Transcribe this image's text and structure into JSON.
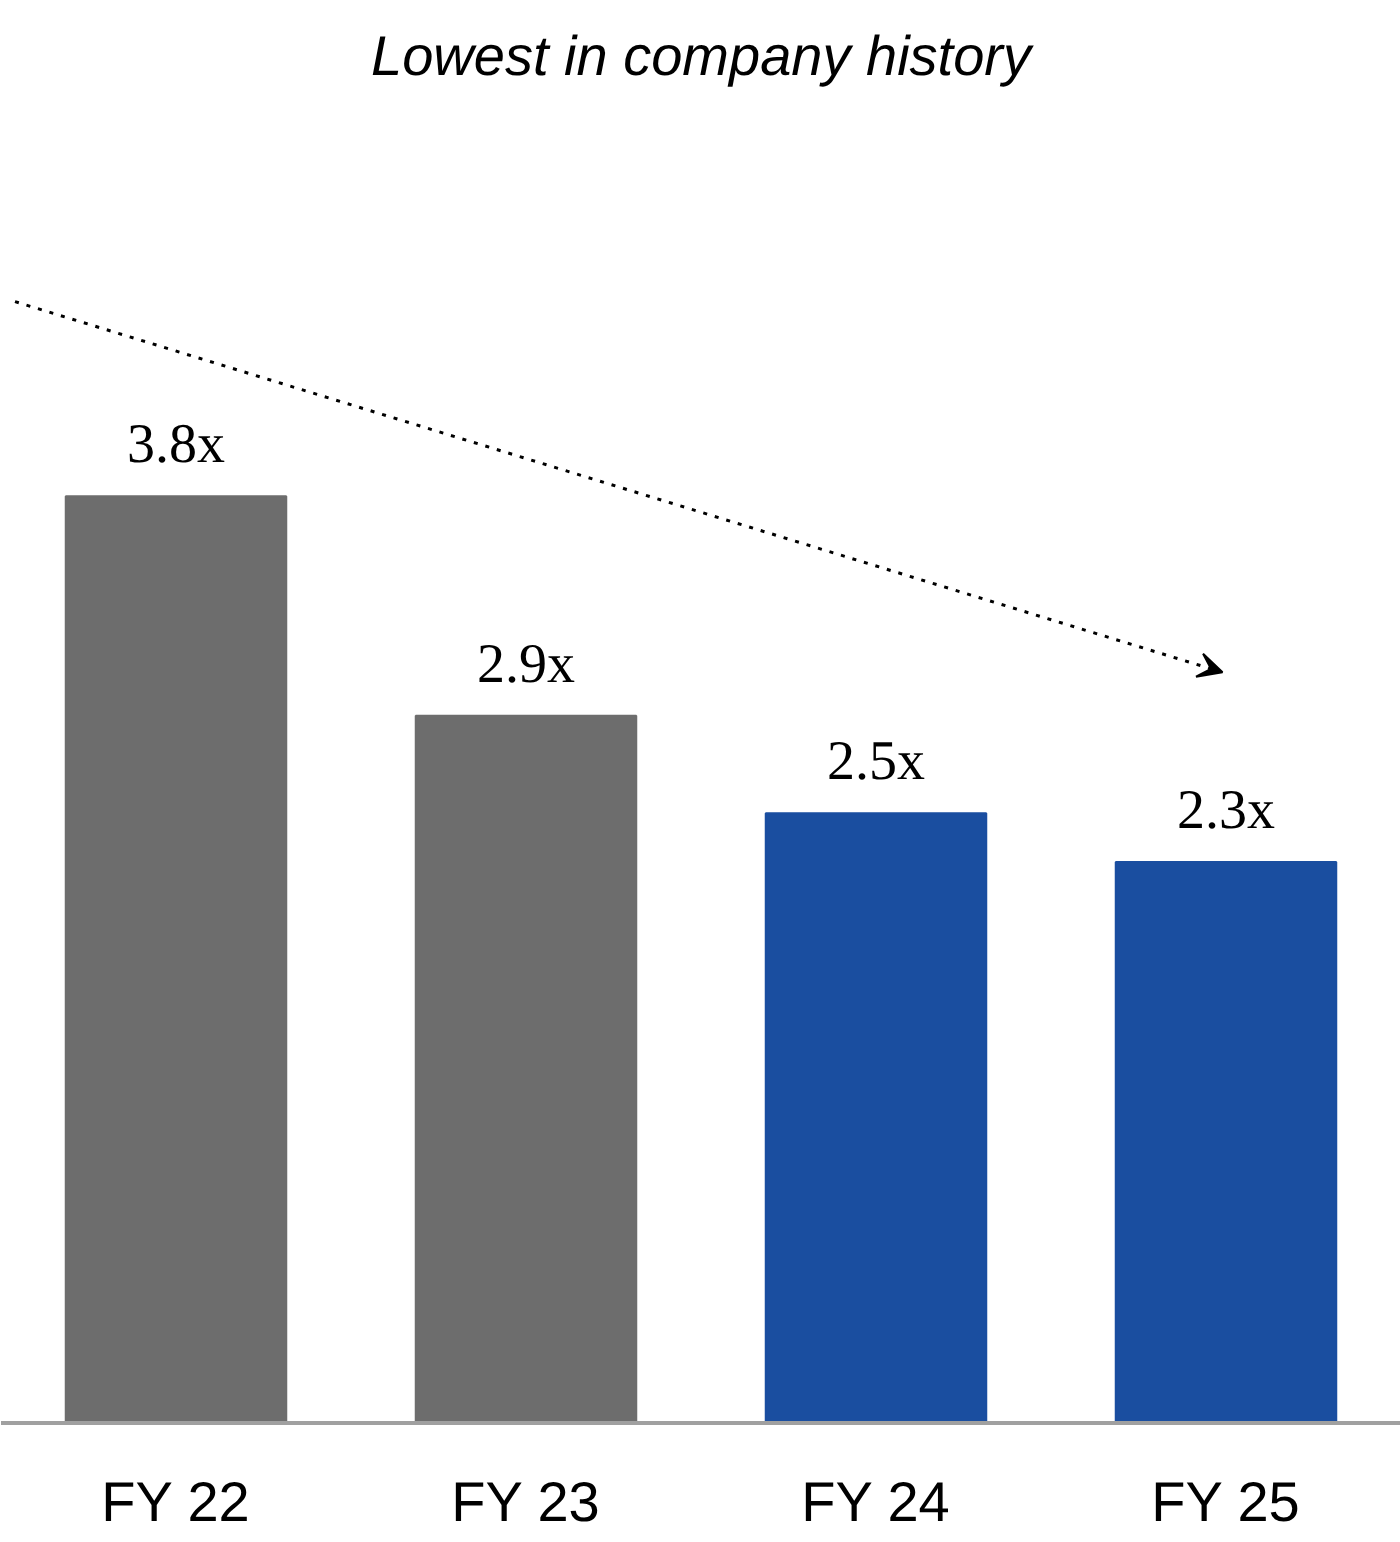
{
  "chart_data": {
    "type": "bar",
    "title": "Lowest in company history",
    "categories": [
      "FY 22",
      "FY 23",
      "FY 24",
      "FY 25"
    ],
    "values": [
      3.8,
      2.9,
      2.5,
      2.3
    ],
    "colors": [
      "#6d6d6d",
      "#6d6d6d",
      "#1a4ea0",
      "#1a4ea0"
    ],
    "value_labels": [
      "3.8x",
      "2.9x",
      "2.5x",
      "2.3x"
    ]
  }
}
